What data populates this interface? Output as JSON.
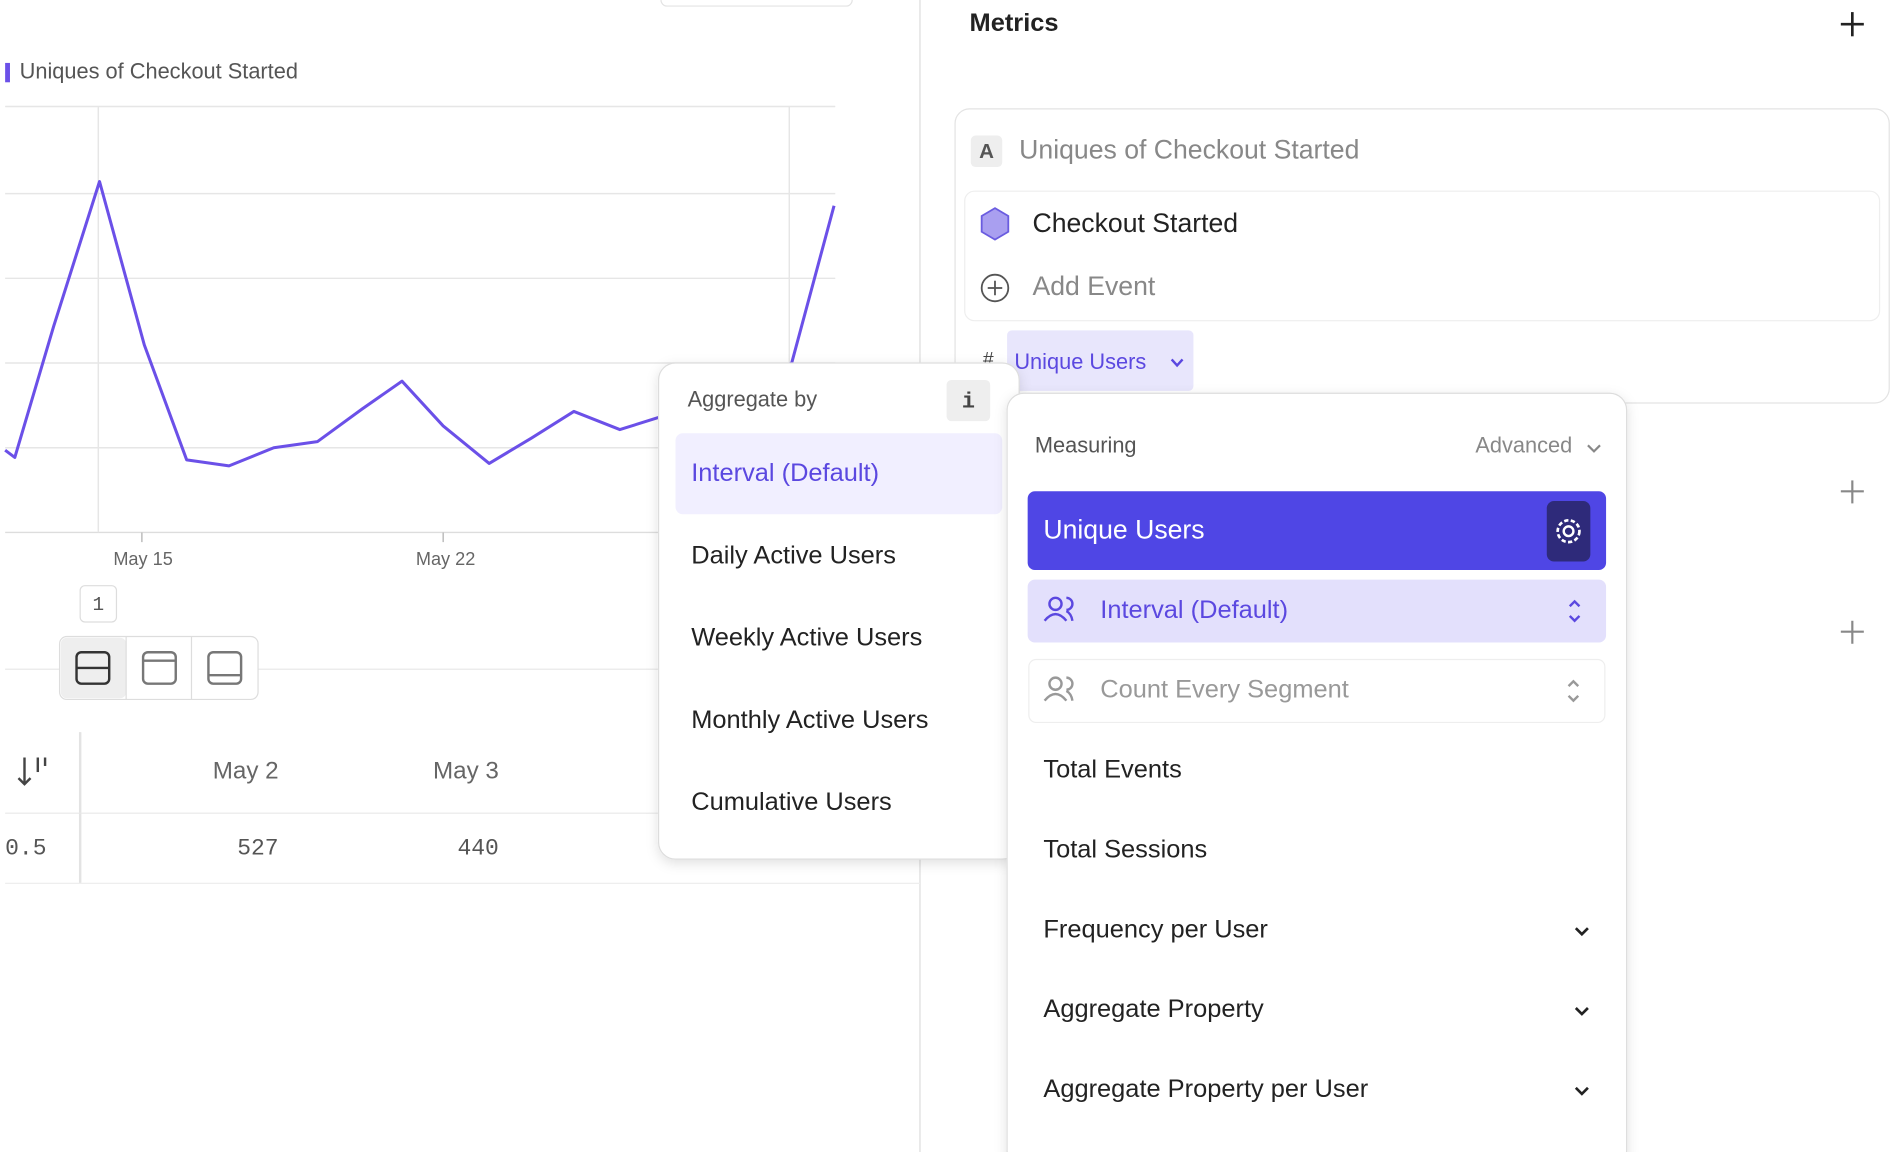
{
  "chart": {
    "legend": "Uniques of Checkout Started",
    "x_labels": [
      "May 15",
      "May 22"
    ],
    "badge": "1"
  },
  "table": {
    "header": [
      "May 2",
      "May 3"
    ],
    "row": [
      "0.5",
      "527",
      "440"
    ]
  },
  "aggregate_menu": {
    "title": "Aggregate by",
    "info": "i",
    "options": [
      "Interval (Default)",
      "Daily Active Users",
      "Weekly Active Users",
      "Monthly Active Users",
      "Cumulative Users"
    ]
  },
  "metrics": {
    "title": "Metrics",
    "letter": "A",
    "name": "Uniques of Checkout Started",
    "event": "Checkout Started",
    "add_event": "Add Event",
    "hash": "#",
    "selector": "Unique Users"
  },
  "measuring_menu": {
    "title": "Measuring",
    "advanced": "Advanced",
    "selected": "Unique Users",
    "interval": "Interval (Default)",
    "segment": "Count Every Segment",
    "items": [
      "Total Events",
      "Total Sessions",
      "Frequency per User",
      "Aggregate Property",
      "Aggregate Property per User"
    ]
  }
}
